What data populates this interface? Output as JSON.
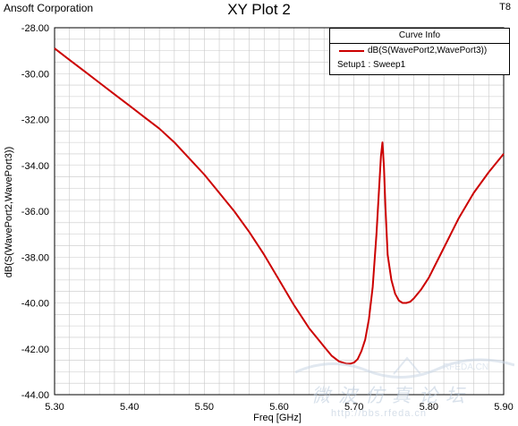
{
  "header": {
    "company": "Ansoft Corporation",
    "title": "XY Plot 2",
    "tag": "T8"
  },
  "legend": {
    "header": "Curve Info",
    "curve_label": "dB(S(WavePort2,WavePort3))",
    "setup_label": "Setup1 : Sweep1"
  },
  "watermark": {
    "brand": "RFEDA.CN",
    "chinese": "微波仿真论坛",
    "url": "http://bbs.rfeda.cn"
  },
  "chart_data": {
    "type": "line",
    "title": "XY Plot 2",
    "xlabel": "Freq [GHz]",
    "ylabel": "dB(S(WavePort2,WavePort3))",
    "xlim": [
      5.3,
      5.9
    ],
    "ylim": [
      -44,
      -28
    ],
    "x_ticks": [
      "5.30",
      "5.40",
      "5.50",
      "5.60",
      "5.70",
      "5.80",
      "5.90"
    ],
    "y_ticks": [
      "-28.00",
      "-30.00",
      "-32.00",
      "-34.00",
      "-36.00",
      "-38.00",
      "-40.00",
      "-42.00",
      "-44.00"
    ],
    "grid": true,
    "legend_position": "top-right",
    "series": [
      {
        "name": "dB(S(WavePort2,WavePort3))",
        "color": "#cc0000",
        "x": [
          5.3,
          5.32,
          5.34,
          5.36,
          5.38,
          5.4,
          5.42,
          5.44,
          5.46,
          5.48,
          5.5,
          5.52,
          5.54,
          5.56,
          5.58,
          5.6,
          5.62,
          5.64,
          5.66,
          5.67,
          5.68,
          5.69,
          5.695,
          5.7,
          5.705,
          5.71,
          5.715,
          5.72,
          5.725,
          5.73,
          5.733,
          5.736,
          5.738,
          5.74,
          5.742,
          5.745,
          5.75,
          5.755,
          5.76,
          5.765,
          5.77,
          5.775,
          5.78,
          5.79,
          5.8,
          5.82,
          5.84,
          5.86,
          5.88,
          5.9
        ],
        "y": [
          -28.9,
          -29.4,
          -29.9,
          -30.4,
          -30.9,
          -31.4,
          -31.9,
          -32.4,
          -33.0,
          -33.7,
          -34.4,
          -35.2,
          -36.0,
          -36.9,
          -37.9,
          -39.0,
          -40.1,
          -41.1,
          -41.9,
          -42.3,
          -42.55,
          -42.65,
          -42.65,
          -42.6,
          -42.45,
          -42.1,
          -41.6,
          -40.7,
          -39.3,
          -37.0,
          -35.3,
          -33.6,
          -33.0,
          -34.0,
          -35.8,
          -37.9,
          -39.0,
          -39.6,
          -39.9,
          -40.0,
          -40.0,
          -39.95,
          -39.8,
          -39.4,
          -38.9,
          -37.6,
          -36.3,
          -35.2,
          -34.3,
          -33.5
        ]
      }
    ]
  }
}
